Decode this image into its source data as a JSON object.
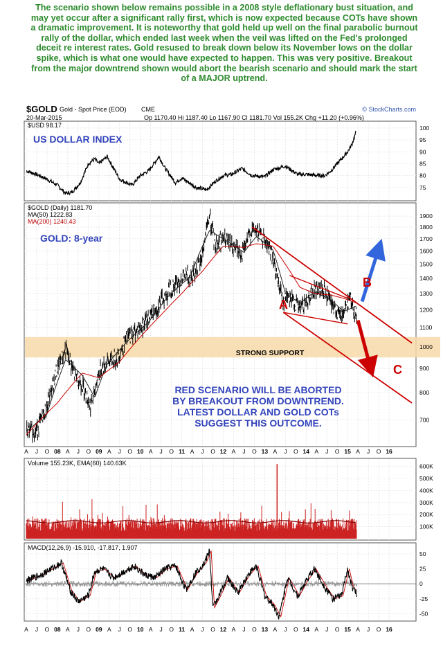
{
  "annotation": "The scenario shown below remains possible in a 2008 style deflationary bust situation, and may yet occur after a significant rally first, which is now expected because COTs have shown a dramatic improvement. It is noteworthy that gold held up well on the final parabolic burnout rally of the dollar, which ended last week when the veil was lifted on the Fed's prolonged deceit re interest rates. Gold resused to break down below its November lows on the dollar spike, which is what one would have expected to happen. This was very positive. Breakout from the major downtrend shown would abort the bearish scenario and should mark the start of a MAJOR uptrend.",
  "header": {
    "symbol": "$GOLD",
    "name": "Gold - Spot Price (EOD)",
    "exchange": "CME",
    "watermark": "© StockCharts.com",
    "date": "20-Mar-2015",
    "quote": "Op 1170.40  Hi 1187.40  Lo 1167.90  Cl 1181.70  Vol 155.2K  Chg +11.20 (+0.96%)"
  },
  "x_axis_labels": [
    "A",
    "J",
    "O",
    "08",
    "A",
    "J",
    "O",
    "09",
    "A",
    "J",
    "O",
    "10",
    "A",
    "J",
    "O",
    "11",
    "A",
    "J",
    "O",
    "12",
    "A",
    "J",
    "O",
    "13",
    "A",
    "J",
    "O",
    "14",
    "A",
    "J",
    "O",
    "15",
    "A",
    "J",
    "O",
    "16"
  ],
  "chart_data": [
    {
      "type": "line",
      "panel": "usd",
      "legend": "$USD 98.17",
      "label": "US DOLLAR INDEX",
      "ylim": [
        70,
        102
      ],
      "yticks": [
        "100",
        "95",
        "90",
        "85",
        "80",
        "75"
      ],
      "series": [
        {
          "name": "$USD",
          "x": [
            2007.25,
            2007.5,
            2007.75,
            2008.0,
            2008.2,
            2008.35,
            2008.55,
            2008.75,
            2008.9,
            2009.0,
            2009.2,
            2009.5,
            2009.8,
            2010.0,
            2010.2,
            2010.45,
            2010.6,
            2010.85,
            2011.0,
            2011.35,
            2011.6,
            2011.8,
            2012.0,
            2012.2,
            2012.45,
            2012.7,
            2013.0,
            2013.2,
            2013.5,
            2013.8,
            2014.0,
            2014.3,
            2014.45,
            2014.6,
            2014.75,
            2014.9,
            2015.0,
            2015.1,
            2015.2
          ],
          "values": [
            82,
            80.5,
            78.5,
            76,
            72.5,
            73,
            77,
            85,
            87,
            85,
            88,
            78.5,
            76,
            80,
            82,
            88,
            83,
            77,
            79,
            75,
            74,
            77.5,
            80,
            80.5,
            83,
            80,
            79.5,
            82.5,
            84,
            80.5,
            80.5,
            80,
            80,
            82,
            85,
            88,
            90,
            93,
            98.2
          ]
        }
      ]
    },
    {
      "type": "line",
      "panel": "gold",
      "legend": [
        "$GOLD (Daily) 1181.70",
        "MA(50) 1222.83",
        "MA(200) 1240.43"
      ],
      "label": "GOLD: 8-year",
      "log_scale": true,
      "ylim": [
        620,
        2000
      ],
      "yticks": [
        "1900",
        "1800",
        "1700",
        "1600",
        "1500",
        "1400",
        "1300",
        "1200",
        "1100",
        "1000",
        "900",
        "800",
        "700"
      ],
      "series": [
        {
          "name": "$GOLD",
          "x": [
            2007.25,
            2007.5,
            2007.75,
            2008.0,
            2008.2,
            2008.4,
            2008.6,
            2008.8,
            2008.9,
            2009.0,
            2009.2,
            2009.45,
            2009.7,
            2010.0,
            2010.2,
            2010.45,
            2010.7,
            2011.0,
            2011.2,
            2011.45,
            2011.67,
            2011.8,
            2012.0,
            2012.2,
            2012.45,
            2012.7,
            2012.8,
            2013.0,
            2013.15,
            2013.3,
            2013.45,
            2013.55,
            2013.7,
            2013.85,
            2014.0,
            2014.2,
            2014.45,
            2014.6,
            2014.8,
            2014.9,
            2015.05,
            2015.15,
            2015.22
          ],
          "values": [
            660,
            665,
            745,
            900,
            990,
            880,
            830,
            750,
            800,
            880,
            930,
            950,
            1050,
            1100,
            1150,
            1230,
            1320,
            1400,
            1420,
            1500,
            1900,
            1650,
            1700,
            1650,
            1580,
            1780,
            1770,
            1680,
            1600,
            1400,
            1250,
            1300,
            1250,
            1200,
            1250,
            1330,
            1310,
            1230,
            1170,
            1190,
            1280,
            1200,
            1180
          ]
        },
        {
          "name": "MA(50)",
          "x": [
            2007.25,
            2007.75,
            2008.2,
            2008.6,
            2008.9,
            2009.2,
            2009.7,
            2010.2,
            2010.7,
            2011.2,
            2011.67,
            2012.0,
            2012.5,
            2012.8,
            2013.2,
            2013.5,
            2013.85,
            2014.2,
            2014.6,
            2014.9,
            2015.22
          ],
          "values": [
            660,
            720,
            940,
            870,
            780,
            920,
            1030,
            1130,
            1290,
            1410,
            1770,
            1700,
            1590,
            1720,
            1610,
            1300,
            1240,
            1310,
            1260,
            1190,
            1222.8
          ]
        },
        {
          "name": "MA(200)",
          "x": [
            2007.25,
            2008.0,
            2008.6,
            2009.0,
            2009.5,
            2010.0,
            2010.5,
            2011.0,
            2011.5,
            2012.0,
            2012.5,
            2012.8,
            2013.2,
            2013.5,
            2013.85,
            2014.2,
            2014.6,
            2014.9,
            2015.22
          ],
          "values": [
            650,
            760,
            880,
            860,
            930,
            1050,
            1170,
            1300,
            1450,
            1640,
            1630,
            1660,
            1640,
            1500,
            1340,
            1300,
            1290,
            1270,
            1240.4
          ]
        }
      ],
      "annotations": [
        "STRONG SUPPORT",
        "RED SCENARIO WILL BE ABORTED",
        "BY BREAKOUT FROM DOWNTREND.",
        "LATEST DOLLAR AND GOLD COTs",
        "SUGGEST THIS OUTCOME.",
        "A",
        "B",
        "C"
      ],
      "support_band": [
        950,
        1050
      ]
    },
    {
      "type": "bar",
      "panel": "volume",
      "legend": "Volume 155.23K, EMA(60) 140.63K",
      "ylim": [
        0,
        650
      ],
      "yticks": [
        "600K",
        "500K",
        "400K",
        "300K",
        "200K",
        "100K"
      ],
      "spike": {
        "x": 2013.3,
        "value": 620
      },
      "ema_level": 140.63,
      "last_volume": 155.23
    },
    {
      "type": "line",
      "panel": "macd",
      "legend": "MACD(12,26,9) -15.910, -17.817, 1.907",
      "ylim": [
        -60,
        65
      ],
      "yticks": [
        "50",
        "25",
        "0",
        "-25",
        "-50"
      ],
      "series": [
        {
          "name": "MACD",
          "x": [
            2007.25,
            2007.6,
            2007.85,
            2008.1,
            2008.3,
            2008.5,
            2008.75,
            2008.9,
            2009.1,
            2009.35,
            2009.6,
            2009.85,
            2010.1,
            2010.35,
            2010.6,
            2010.85,
            2011.1,
            2011.35,
            2011.55,
            2011.67,
            2011.75,
            2011.9,
            2012.1,
            2012.35,
            2012.6,
            2012.8,
            2013.0,
            2013.2,
            2013.35,
            2013.55,
            2013.8,
            2014.0,
            2014.2,
            2014.45,
            2014.65,
            2014.85,
            2015.0,
            2015.1,
            2015.22
          ],
          "values": [
            5,
            15,
            25,
            35,
            -10,
            -30,
            -20,
            20,
            25,
            10,
            20,
            30,
            15,
            10,
            25,
            30,
            -10,
            20,
            35,
            55,
            -40,
            -20,
            10,
            -15,
            15,
            30,
            -20,
            -35,
            -55,
            10,
            -20,
            5,
            25,
            -5,
            -25,
            -20,
            25,
            -5,
            -15.91
          ]
        }
      ]
    }
  ]
}
